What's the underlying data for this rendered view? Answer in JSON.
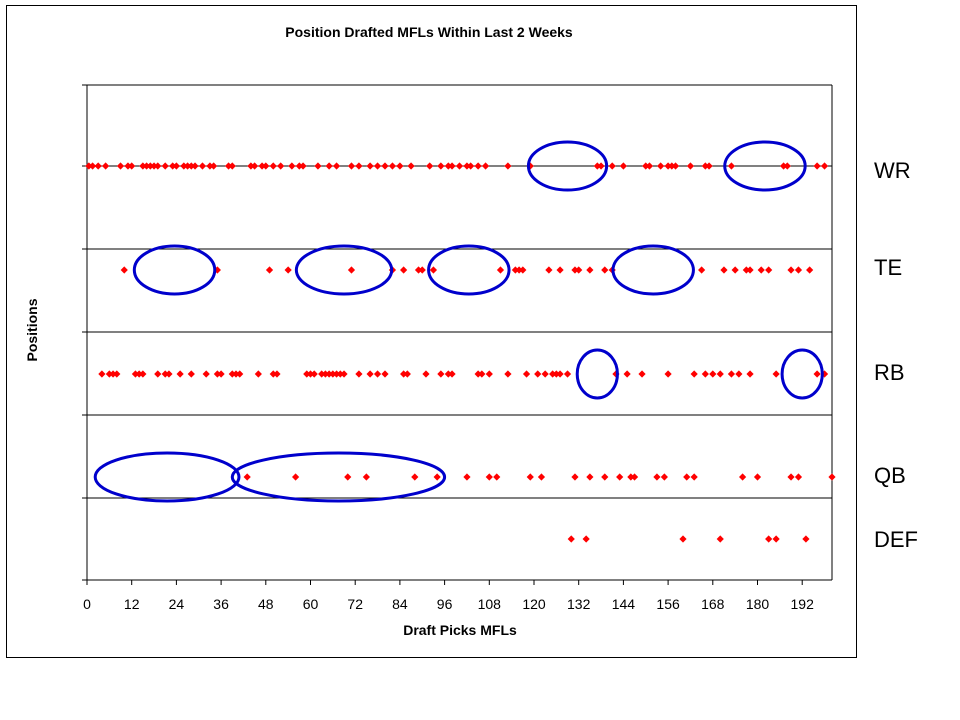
{
  "chart_data": {
    "type": "scatter",
    "title": "Position Drafted MFLs Within Last 2 Weeks",
    "xlabel": "Draft Picks MFLs",
    "ylabel": "Positions",
    "xlim": [
      0,
      200
    ],
    "x_ticks": [
      "0",
      "12",
      "24",
      "36",
      "48",
      "60",
      "72",
      "84",
      "96",
      "108",
      "120",
      "132",
      "144",
      "156",
      "168",
      "180",
      "192"
    ],
    "gridlines": "horizontal",
    "marker_color": "#ff0000",
    "highlight_color": "#0000cc",
    "categories": [
      "WR",
      "TE",
      "RB",
      "QB",
      "DEF"
    ],
    "series": [
      {
        "name": "WR",
        "x": [
          0.5,
          1.5,
          3,
          5,
          9,
          11,
          12,
          15,
          16,
          17,
          18,
          19,
          21,
          23,
          24,
          26,
          27,
          28,
          29,
          31,
          33,
          34,
          38,
          39,
          44,
          45,
          47,
          48,
          50,
          52,
          55,
          57,
          58,
          62,
          65,
          67,
          71,
          73,
          76,
          78,
          80,
          82,
          84,
          87,
          92,
          95,
          97,
          98,
          100,
          102,
          103,
          105,
          107,
          113,
          119,
          137,
          138,
          141,
          144,
          150,
          151,
          154,
          156,
          157,
          158,
          162,
          166,
          167,
          173,
          187,
          188,
          196,
          198
        ]
      },
      {
        "name": "TE",
        "x": [
          10,
          35,
          49,
          54,
          71,
          82,
          85,
          89,
          90,
          93,
          111,
          115,
          116,
          117,
          124,
          127,
          131,
          132,
          135,
          139,
          141,
          165,
          171,
          174,
          177,
          178,
          181,
          183,
          189,
          191,
          194
        ]
      },
      {
        "name": "RB",
        "x": [
          4,
          6,
          7,
          8,
          13,
          14,
          15,
          19,
          21,
          22,
          25,
          28,
          32,
          35,
          36,
          39,
          40,
          41,
          46,
          50,
          51,
          59,
          60,
          61,
          63,
          64,
          65,
          66,
          67,
          68,
          69,
          73,
          76,
          78,
          80,
          85,
          86,
          91,
          95,
          97,
          98,
          105,
          106,
          108,
          113,
          118,
          121,
          123,
          125,
          126,
          127,
          129,
          142,
          145,
          149,
          156,
          163,
          166,
          168,
          170,
          173,
          175,
          178,
          185,
          196,
          198
        ]
      },
      {
        "name": "QB",
        "x": [
          43,
          56,
          70,
          75,
          88,
          94,
          102,
          108,
          110,
          119,
          122,
          131,
          135,
          139,
          143,
          146,
          147,
          153,
          155,
          161,
          163,
          176,
          180,
          189,
          191,
          200
        ]
      },
      {
        "name": "DEF",
        "x": [
          130,
          134,
          160,
          170,
          183,
          185,
          193
        ]
      }
    ],
    "highlights": [
      {
        "position": "WR",
        "x_center": 129,
        "x_radius": 10.5
      },
      {
        "position": "WR",
        "x_center": 182,
        "x_radius": 10.8
      },
      {
        "position": "TE",
        "x_center": 23.5,
        "x_radius": 10.8
      },
      {
        "position": "TE",
        "x_center": 69,
        "x_radius": 12.8
      },
      {
        "position": "TE",
        "x_center": 102.5,
        "x_radius": 10.8
      },
      {
        "position": "TE",
        "x_center": 152,
        "x_radius": 10.8
      },
      {
        "position": "RB",
        "x_center": 137,
        "x_radius": 5.4
      },
      {
        "position": "RB",
        "x_center": 192,
        "x_radius": 5.4
      },
      {
        "position": "QB",
        "x_center": 21.5,
        "x_radius": 19.3
      },
      {
        "position": "QB",
        "x_center": 67.5,
        "x_radius": 28.5
      }
    ]
  }
}
